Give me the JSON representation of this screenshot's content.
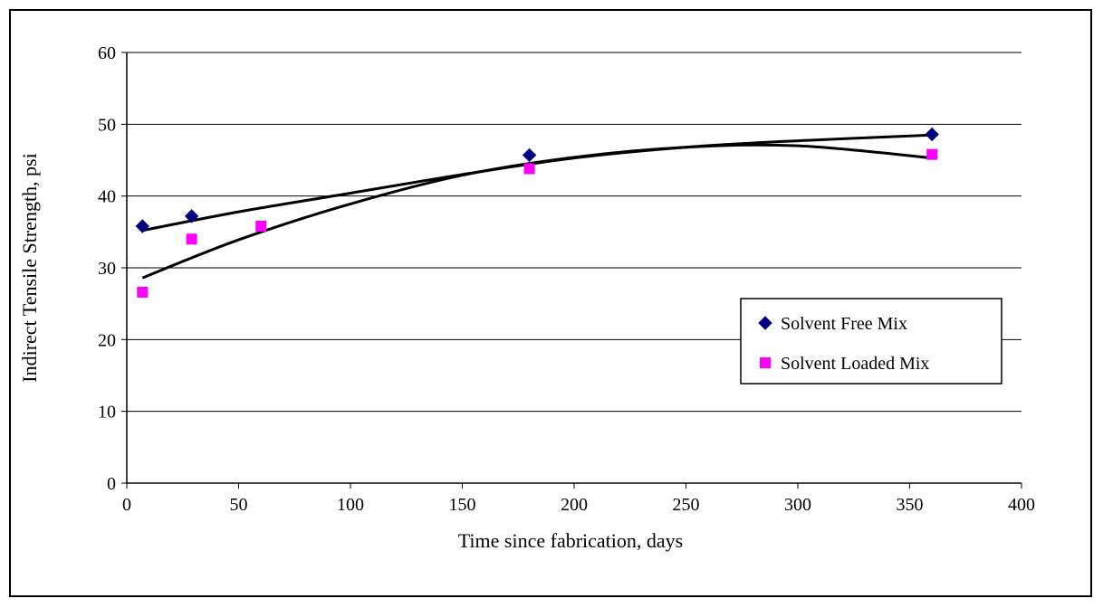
{
  "chart_data": {
    "type": "scatter",
    "xlabel": "Time since fabrication, days",
    "ylabel": "Indirect Tensile Strength, psi",
    "xlim": [
      0,
      400
    ],
    "ylim": [
      0,
      60
    ],
    "xticks": [
      0,
      50,
      100,
      150,
      200,
      250,
      300,
      350,
      400
    ],
    "yticks": [
      0,
      10,
      20,
      30,
      40,
      50,
      60
    ],
    "grid": "horizontal",
    "legend_position": "right",
    "series": [
      {
        "name": "Solvent Free Mix",
        "marker": "diamond",
        "color": "#000080",
        "points": [
          [
            7,
            35.8
          ],
          [
            29,
            37.2
          ],
          [
            180,
            45.7
          ],
          [
            360,
            48.6
          ]
        ],
        "trend": [
          [
            7,
            35.2
          ],
          [
            50,
            37.8
          ],
          [
            100,
            40.4
          ],
          [
            150,
            43.0
          ],
          [
            200,
            45.3
          ],
          [
            250,
            46.8
          ],
          [
            300,
            47.7
          ],
          [
            360,
            48.5
          ]
        ]
      },
      {
        "name": "Solvent Loaded Mix",
        "marker": "square",
        "color": "#ff00ff",
        "points": [
          [
            7,
            26.6
          ],
          [
            29,
            34.0
          ],
          [
            60,
            35.8
          ],
          [
            180,
            43.8
          ],
          [
            360,
            45.8
          ]
        ],
        "trend": [
          [
            7,
            28.6
          ],
          [
            50,
            33.9
          ],
          [
            100,
            38.9
          ],
          [
            150,
            42.9
          ],
          [
            200,
            45.4
          ],
          [
            250,
            46.8
          ],
          [
            300,
            47.0
          ],
          [
            360,
            45.3
          ]
        ]
      }
    ]
  }
}
